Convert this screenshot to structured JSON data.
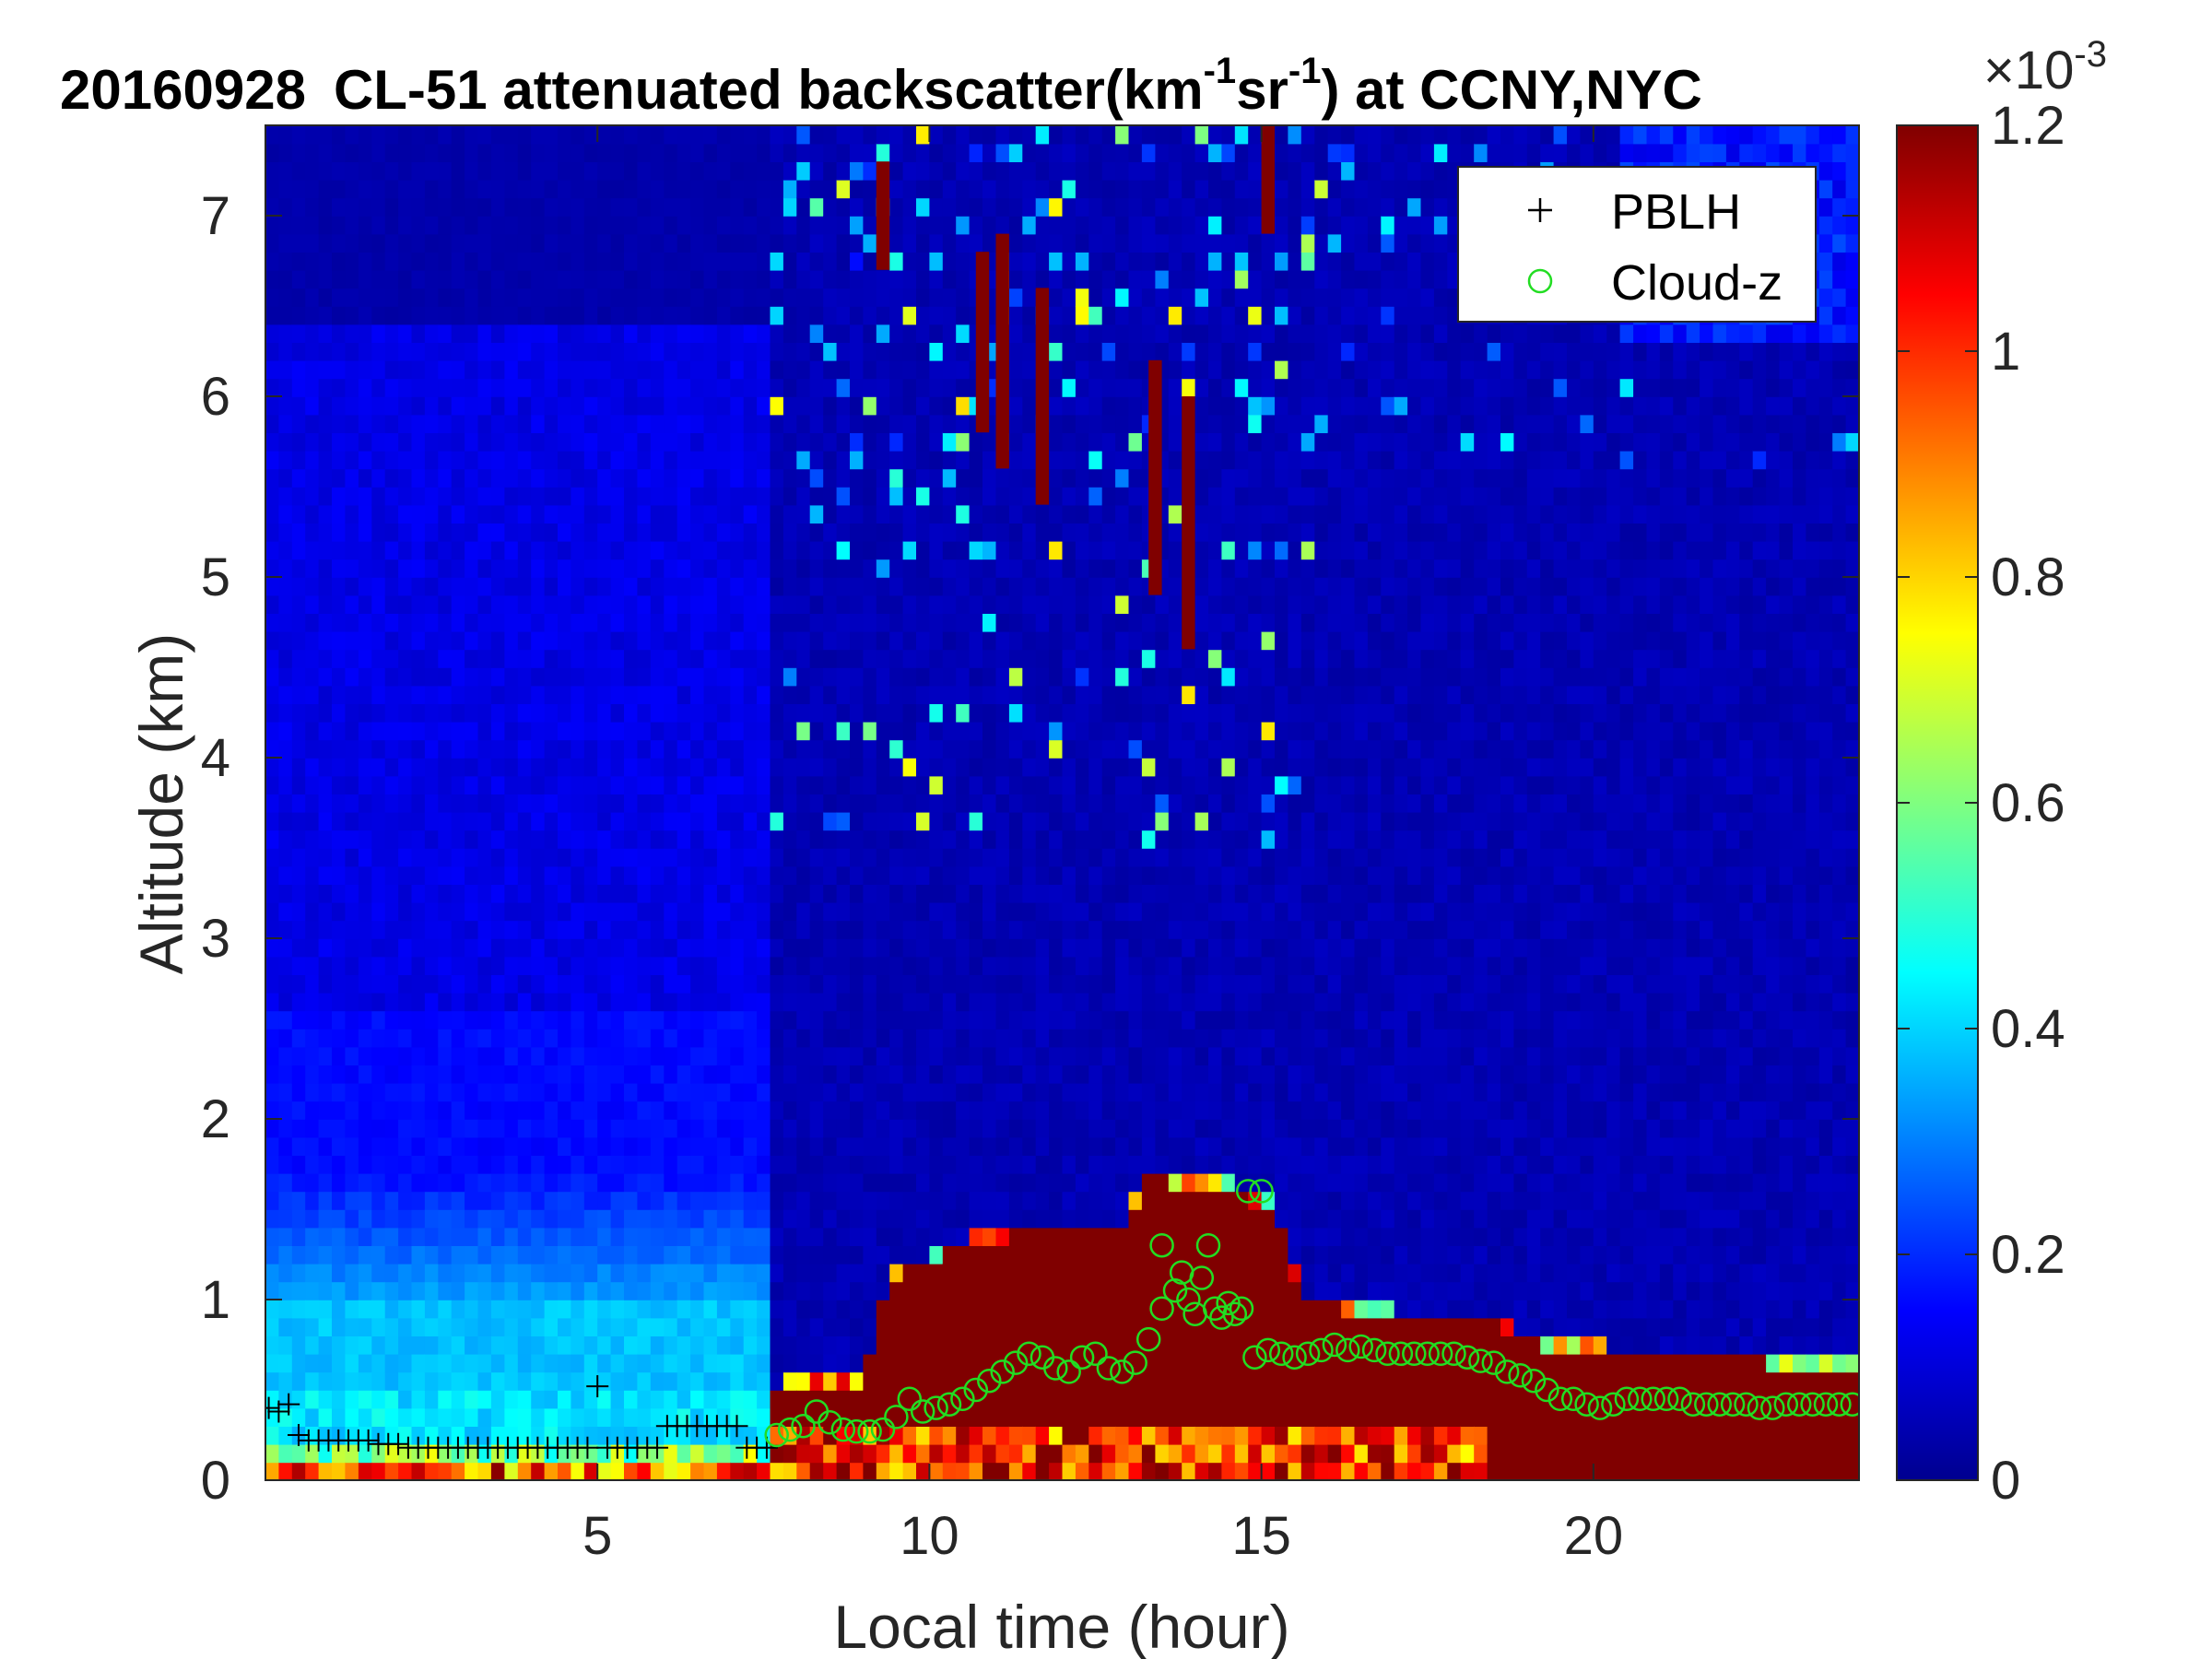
{
  "chart_data": {
    "type": "heatmap",
    "title": {
      "date": "20160928",
      "main": "CL-51 attenuated backscatter(km",
      "sup1": "-1",
      "mid": "sr",
      "sup2": "-1",
      "tail": ") at CCNY,NYC"
    },
    "xlabel": "Local time (hour)",
    "ylabel": "Altitude (km)",
    "xlim": [
      0,
      24
    ],
    "ylim": [
      0,
      7.5
    ],
    "x_ticks": [
      5,
      10,
      15,
      20
    ],
    "y_ticks": [
      0,
      1,
      2,
      3,
      4,
      5,
      6,
      7
    ],
    "colorbar": {
      "colormap": "jet",
      "clim": [
        0,
        1.2
      ],
      "ticks": [
        "0",
        "0.2",
        "0.4",
        "0.6",
        "0.8",
        "1",
        "1.2"
      ],
      "tick_values": [
        0,
        0.2,
        0.4,
        0.6,
        0.8,
        1.0,
        1.2
      ],
      "exponent_base": "×10",
      "exponent": "-3"
    },
    "legend": {
      "placement": "top-right",
      "entries": [
        {
          "label": "PBLH",
          "marker": "+",
          "color": "#000000"
        },
        {
          "label": "Cloud-z",
          "marker": "o",
          "color": "#22dd22"
        }
      ]
    },
    "series": [
      {
        "name": "PBLH",
        "x": [
          0.05,
          0.2,
          0.35,
          0.5,
          0.65,
          0.8,
          0.95,
          1.1,
          1.25,
          1.4,
          1.55,
          1.7,
          1.85,
          2.0,
          2.15,
          2.3,
          2.45,
          2.6,
          2.75,
          2.9,
          3.05,
          3.2,
          3.35,
          3.5,
          3.65,
          3.8,
          3.95,
          4.1,
          4.25,
          4.4,
          4.55,
          4.7,
          4.85,
          5.0,
          5.15,
          5.3,
          5.45,
          5.6,
          5.75,
          5.9,
          6.05,
          6.2,
          6.35,
          6.5,
          6.65,
          6.8,
          6.95,
          7.1,
          7.25,
          7.4,
          7.55
        ],
        "y": [
          0.4,
          0.38,
          0.42,
          0.25,
          0.22,
          0.22,
          0.22,
          0.22,
          0.22,
          0.22,
          0.22,
          0.2,
          0.2,
          0.2,
          0.18,
          0.18,
          0.18,
          0.18,
          0.18,
          0.18,
          0.18,
          0.18,
          0.18,
          0.18,
          0.18,
          0.18,
          0.18,
          0.18,
          0.18,
          0.18,
          0.18,
          0.18,
          0.18,
          0.52,
          0.18,
          0.18,
          0.18,
          0.18,
          0.18,
          0.18,
          0.3,
          0.3,
          0.3,
          0.3,
          0.3,
          0.3,
          0.3,
          0.3,
          0.18,
          0.18,
          0.18
        ]
      },
      {
        "name": "Cloud-z",
        "x": [
          7.7,
          7.9,
          8.1,
          8.3,
          8.5,
          8.7,
          8.9,
          9.1,
          9.3,
          9.5,
          9.7,
          9.9,
          10.1,
          10.3,
          10.5,
          10.7,
          10.9,
          11.1,
          11.3,
          11.5,
          11.7,
          11.9,
          12.1,
          12.3,
          12.5,
          12.7,
          12.9,
          13.1,
          13.3,
          13.5,
          13.7,
          13.9,
          14.1,
          14.3,
          14.5,
          14.7,
          14.9,
          15.1,
          15.3,
          15.5,
          15.7,
          15.9,
          16.1,
          16.3,
          16.5,
          16.7,
          16.9,
          17.1,
          17.3,
          17.5,
          17.7,
          17.9,
          18.1,
          18.3,
          18.5,
          18.7,
          18.9,
          19.1,
          19.3,
          19.5,
          19.7,
          19.9,
          20.1,
          20.3,
          20.5,
          20.7,
          20.9,
          21.1,
          21.3,
          21.5,
          21.7,
          21.9,
          22.1,
          22.3,
          22.5,
          22.7,
          22.9,
          23.1,
          23.3,
          23.5,
          23.7,
          23.9,
          13.5,
          13.8,
          14.0,
          14.2,
          14.4,
          14.6,
          14.8,
          15.0
        ],
        "y": [
          0.25,
          0.28,
          0.3,
          0.38,
          0.32,
          0.28,
          0.27,
          0.27,
          0.28,
          0.35,
          0.45,
          0.38,
          0.4,
          0.42,
          0.45,
          0.5,
          0.55,
          0.6,
          0.65,
          0.7,
          0.68,
          0.62,
          0.6,
          0.68,
          0.7,
          0.62,
          0.6,
          0.65,
          0.78,
          0.95,
          1.05,
          1.0,
          1.12,
          0.95,
          0.98,
          0.95,
          0.68,
          0.72,
          0.7,
          0.68,
          0.7,
          0.72,
          0.75,
          0.72,
          0.74,
          0.72,
          0.7,
          0.7,
          0.7,
          0.7,
          0.7,
          0.7,
          0.68,
          0.66,
          0.65,
          0.6,
          0.58,
          0.55,
          0.5,
          0.45,
          0.45,
          0.42,
          0.4,
          0.42,
          0.45,
          0.45,
          0.45,
          0.45,
          0.45,
          0.42,
          0.42,
          0.42,
          0.42,
          0.42,
          0.4,
          0.4,
          0.42,
          0.42,
          0.42,
          0.42,
          0.42,
          0.42,
          1.3,
          1.15,
          0.92,
          1.3,
          0.9,
          0.92,
          1.6,
          1.6
        ]
      }
    ]
  }
}
